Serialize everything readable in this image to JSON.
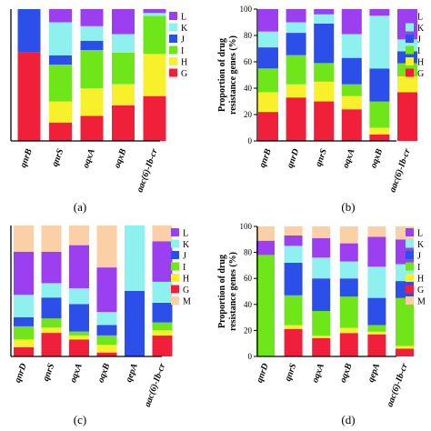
{
  "colors": {
    "L": "#9b3ff0",
    "K": "#8ff0f0",
    "J": "#2b4fe8",
    "I": "#6ee61a",
    "H": "#f8f02a",
    "G": "#f0203a",
    "M": "#fcd0a6"
  },
  "chart_data": [
    {
      "panel": "(a)",
      "type": "bar",
      "stacked": true,
      "ylabel": "",
      "ylim": [
        0,
        100
      ],
      "yticks": [],
      "legend": {
        "placement": "right",
        "labels": [
          "L",
          "K",
          "J",
          "I",
          "H",
          "G"
        ]
      },
      "categories": [
        "qnrB",
        "qnrS",
        "oqxA",
        "oqxB",
        "aac(6)-Ib-cr"
      ],
      "series": [
        {
          "name": "G",
          "values": [
            67,
            14,
            19,
            27,
            34
          ]
        },
        {
          "name": "H",
          "values": [
            0,
            16,
            21,
            16,
            32
          ]
        },
        {
          "name": "I",
          "values": [
            0,
            28,
            29,
            24,
            29
          ]
        },
        {
          "name": "J",
          "values": [
            33,
            7,
            7,
            0,
            0
          ]
        },
        {
          "name": "K",
          "values": [
            0,
            25,
            11,
            14,
            2
          ]
        },
        {
          "name": "L",
          "values": [
            0,
            10,
            13,
            19,
            3
          ]
        }
      ]
    },
    {
      "panel": "(b)",
      "type": "bar",
      "stacked": true,
      "ylabel": "Proportion of drug resistance genes (%)",
      "ylabel_lines": [
        "Proportion of drug",
        "resistance genes (%)"
      ],
      "ylim": [
        0,
        100
      ],
      "yticks": [
        0,
        20,
        40,
        60,
        80,
        100
      ],
      "legend": {
        "placement": "right",
        "labels": [
          "L",
          "K",
          "J",
          "I",
          "H",
          "G"
        ]
      },
      "categories": [
        "qnrB",
        "qnrD",
        "qnrS",
        "oqxA",
        "oqxB",
        "aac(6)-Ib-cr"
      ],
      "series": [
        {
          "name": "G",
          "values": [
            22,
            33,
            30,
            24,
            5,
            37
          ]
        },
        {
          "name": "H",
          "values": [
            15,
            10,
            15,
            10,
            5,
            12
          ]
        },
        {
          "name": "I",
          "values": [
            18,
            22,
            14,
            9,
            20,
            10
          ]
        },
        {
          "name": "J",
          "values": [
            16,
            17,
            30,
            20,
            25,
            9
          ]
        },
        {
          "name": "K",
          "values": [
            12,
            8,
            7,
            18,
            40,
            9
          ]
        },
        {
          "name": "L",
          "values": [
            17,
            10,
            4,
            19,
            5,
            23
          ]
        }
      ]
    },
    {
      "panel": "(c)",
      "type": "bar",
      "stacked": true,
      "ylabel": "",
      "ylim": [
        0,
        100
      ],
      "yticks": [],
      "legend": {
        "placement": "right",
        "labels": [
          "L",
          "K",
          "J",
          "I",
          "H",
          "G",
          "M"
        ]
      },
      "categories": [
        "qnrD",
        "qnrS",
        "oqxA",
        "oqxB",
        "qepA",
        "aac(6)-Ib-cr"
      ],
      "series": [
        {
          "name": "G",
          "values": [
            7,
            18,
            13,
            3,
            0,
            16
          ]
        },
        {
          "name": "H",
          "values": [
            6,
            4,
            3,
            6,
            0,
            4
          ]
        },
        {
          "name": "I",
          "values": [
            10,
            7,
            3,
            7,
            0,
            6
          ]
        },
        {
          "name": "J",
          "values": [
            7,
            16,
            21,
            8,
            50,
            15
          ]
        },
        {
          "name": "K",
          "values": [
            17,
            11,
            12,
            10,
            50,
            16
          ]
        },
        {
          "name": "L",
          "values": [
            33,
            24,
            33,
            34,
            0,
            31
          ]
        },
        {
          "name": "M",
          "values": [
            20,
            20,
            15,
            32,
            0,
            12
          ]
        }
      ]
    },
    {
      "panel": "(d)",
      "type": "bar",
      "stacked": true,
      "ylabel": "Proportion of drug resistance genes (%)",
      "ylabel_lines": [
        "Proportion of drug",
        "resistance genes (%)"
      ],
      "ylim": [
        0,
        100
      ],
      "yticks": [
        0,
        20,
        40,
        60,
        80,
        100
      ],
      "legend": {
        "placement": "right",
        "labels": [
          "L",
          "K",
          "J",
          "I",
          "H",
          "G",
          "M"
        ]
      },
      "categories": [
        "qnrD",
        "qnrS",
        "oqxA",
        "oqxB",
        "qepA",
        "aac(6)-Ib-cr"
      ],
      "series": [
        {
          "name": "G",
          "values": [
            0,
            21,
            14,
            18,
            17,
            6
          ]
        },
        {
          "name": "H",
          "values": [
            0,
            3,
            2,
            4,
            2,
            2
          ]
        },
        {
          "name": "I",
          "values": [
            78,
            23,
            19,
            24,
            5,
            37
          ]
        },
        {
          "name": "J",
          "values": [
            0,
            25,
            25,
            14,
            21,
            13
          ]
        },
        {
          "name": "K",
          "values": [
            0,
            13,
            16,
            13,
            24,
            13
          ]
        },
        {
          "name": "L",
          "values": [
            11,
            8,
            15,
            14,
            23,
            19
          ]
        },
        {
          "name": "M",
          "values": [
            11,
            7,
            9,
            13,
            8,
            10
          ]
        }
      ]
    }
  ]
}
